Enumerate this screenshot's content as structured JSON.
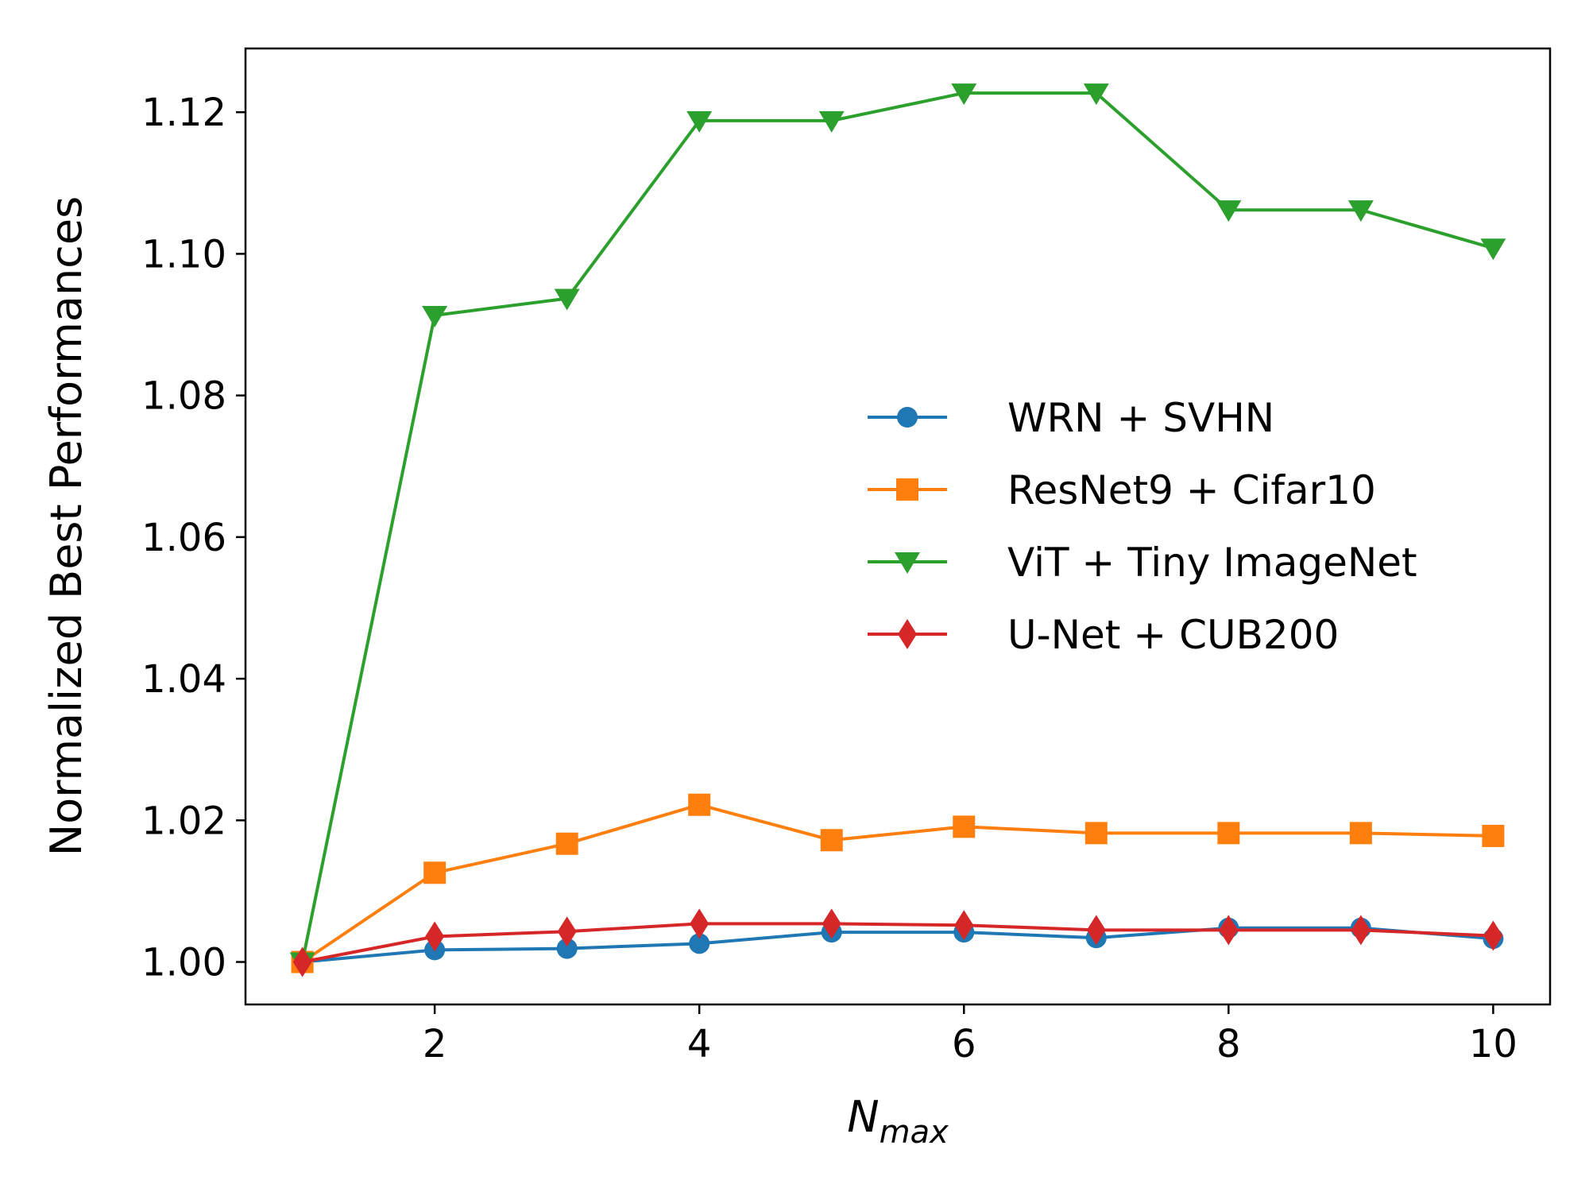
{
  "chart_data": {
    "type": "line",
    "title": "",
    "xlabel_main": "N",
    "xlabel_sub": "max",
    "ylabel": "Normalized Best Performances",
    "x": [
      1,
      2,
      3,
      4,
      5,
      6,
      7,
      8,
      9,
      10
    ],
    "xlim": [
      0.57,
      10.43
    ],
    "ylim": [
      0.994,
      1.129
    ],
    "xticks": [
      2,
      4,
      6,
      8,
      10
    ],
    "xtick_labels": [
      "2",
      "4",
      "6",
      "8",
      "10"
    ],
    "yticks": [
      1.0,
      1.02,
      1.04,
      1.06,
      1.08,
      1.1,
      1.12
    ],
    "ytick_labels": [
      "1.00",
      "1.02",
      "1.04",
      "1.06",
      "1.08",
      "1.10",
      "1.12"
    ],
    "grid": false,
    "legend_position": "center-right",
    "series": [
      {
        "name": "WRN + SVHN",
        "color": "#1f77b4",
        "marker": "circle",
        "values": [
          1.0,
          1.0017,
          1.0019,
          1.0026,
          1.0042,
          1.0042,
          1.0034,
          1.0048,
          1.0048,
          1.0033
        ]
      },
      {
        "name": "ResNet9 + Cifar10",
        "color": "#ff7f0e",
        "marker": "square",
        "values": [
          1.0,
          1.0126,
          1.0167,
          1.0222,
          1.0172,
          1.0191,
          1.0182,
          1.0182,
          1.0182,
          1.0178
        ]
      },
      {
        "name": "ViT + Tiny ImageNet",
        "color": "#2ca02c",
        "marker": "triangle-down",
        "values": [
          1.0,
          1.0913,
          1.0937,
          1.1188,
          1.1188,
          1.1227,
          1.1227,
          1.1062,
          1.1062,
          1.1008
        ]
      },
      {
        "name": "U-Net + CUB200",
        "color": "#d62728",
        "marker": "diamond",
        "values": [
          1.0,
          1.0036,
          1.0043,
          1.0054,
          1.0054,
          1.0052,
          1.0045,
          1.0045,
          1.0045,
          1.0037
        ]
      }
    ]
  }
}
